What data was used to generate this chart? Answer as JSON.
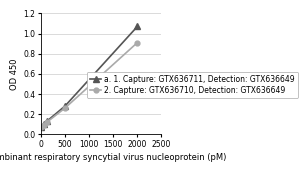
{
  "title": "",
  "xlabel": "Recombinant respiratory syncytial virus nucleoprotein (pM)",
  "ylabel": "OD 450",
  "xlim": [
    0,
    2500
  ],
  "ylim": [
    0,
    1.2
  ],
  "xticks": [
    0,
    500,
    1000,
    1500,
    2000,
    2500
  ],
  "yticks": [
    0,
    0.2,
    0.4,
    0.6,
    0.8,
    1.0,
    1.2
  ],
  "series": [
    {
      "label": "a. 1. Capture: GTX636711, Detection: GTX636649",
      "x": [
        0,
        62.5,
        125,
        500,
        2000
      ],
      "y": [
        0.07,
        0.1,
        0.13,
        0.28,
        1.07
      ],
      "color": "#555555",
      "marker": "^",
      "markersize": 4,
      "linewidth": 1.2
    },
    {
      "label": "2. Capture: GTX636710, Detection: GTX636649",
      "x": [
        0,
        62.5,
        125,
        500,
        2000
      ],
      "y": [
        0.07,
        0.09,
        0.12,
        0.26,
        0.91
      ],
      "color": "#aaaaaa",
      "marker": "o",
      "markersize": 3.5,
      "linewidth": 1.2
    }
  ],
  "legend_fontsize": 5.5,
  "axis_fontsize": 6,
  "tick_fontsize": 5.5,
  "background_color": "#ffffff",
  "grid_color": "#cccccc"
}
